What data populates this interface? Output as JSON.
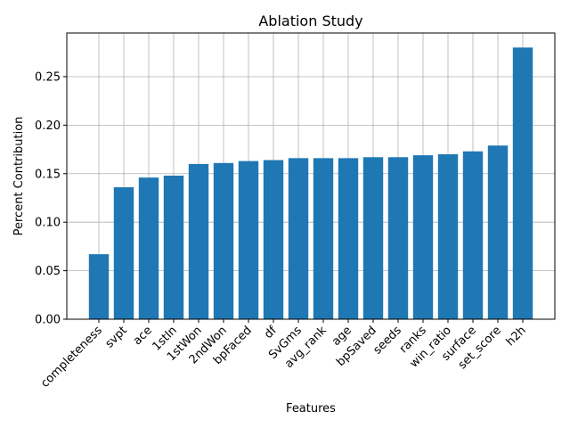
{
  "chart_data": {
    "type": "bar",
    "title": "Ablation Study",
    "xlabel": "Features",
    "ylabel": "Percent Contribution",
    "categories": [
      "completeness",
      "svpt",
      "ace",
      "1stIn",
      "1stWon",
      "2ndWon",
      "bpFaced",
      "df",
      "SvGms",
      "avg_rank",
      "age",
      "bpSaved",
      "seeds",
      "ranks",
      "win_ratio",
      "surface",
      "set_score",
      "h2h"
    ],
    "values": [
      0.067,
      0.136,
      0.146,
      0.148,
      0.16,
      0.161,
      0.163,
      0.164,
      0.166,
      0.166,
      0.166,
      0.167,
      0.167,
      0.169,
      0.17,
      0.173,
      0.179,
      0.28
    ],
    "ylim": [
      0,
      0.295
    ],
    "yticks": [
      "0.00",
      "0.05",
      "0.10",
      "0.15",
      "0.20",
      "0.25"
    ],
    "ytick_values": [
      0,
      0.05,
      0.1,
      0.15,
      0.2,
      0.25
    ],
    "grid": true,
    "bar_color": "#1f77b4"
  }
}
